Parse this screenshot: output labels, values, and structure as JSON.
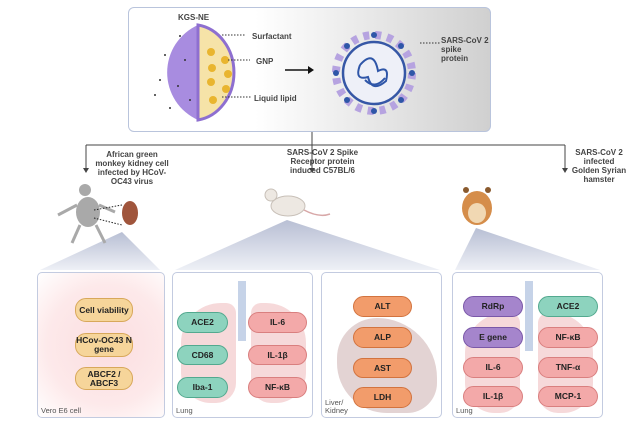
{
  "top": {
    "nanoemulsion_title": "KGS-NE",
    "labels": {
      "surfactant": "Surfactant",
      "gnp": "GNP",
      "liquid_lipid": "Liquid lipid"
    },
    "virus_label": "SARS-CoV 2 spike protein"
  },
  "branches": {
    "monkey": "African green monkey kidney cell infected by HCoV-OC43 virus",
    "mouse": "SARS-CoV 2 Spike Receptor protein induced C57BL/6",
    "hamster": "SARS-CoV 2 infected Golden Syrian hamster"
  },
  "panels": {
    "vero": {
      "label": "Vero E6 cell",
      "items": [
        "Cell viability",
        "HCov-OC43 N gene",
        "ABCF2 / ABCF3"
      ]
    },
    "mouse_lung": {
      "label": "Lung",
      "left": [
        "ACE2",
        "CD68",
        "Iba-1"
      ],
      "right": [
        "IL-6",
        "IL-1β",
        "NF-κB"
      ]
    },
    "liver": {
      "label": "Liver/ Kidney",
      "items": [
        "ALT",
        "ALP",
        "AST",
        "LDH"
      ]
    },
    "hamster_lung": {
      "label": "Lung",
      "left": [
        "RdRp",
        "E gene",
        "IL-6",
        "IL-1β"
      ],
      "right": [
        "ACE2",
        "NF-κB",
        "TNF-α",
        "MCP-1"
      ]
    }
  },
  "colors": {
    "accent_border": "#b9c4dc",
    "nanoemulsion": "#a88ce0",
    "virus": "#2f56a8"
  }
}
